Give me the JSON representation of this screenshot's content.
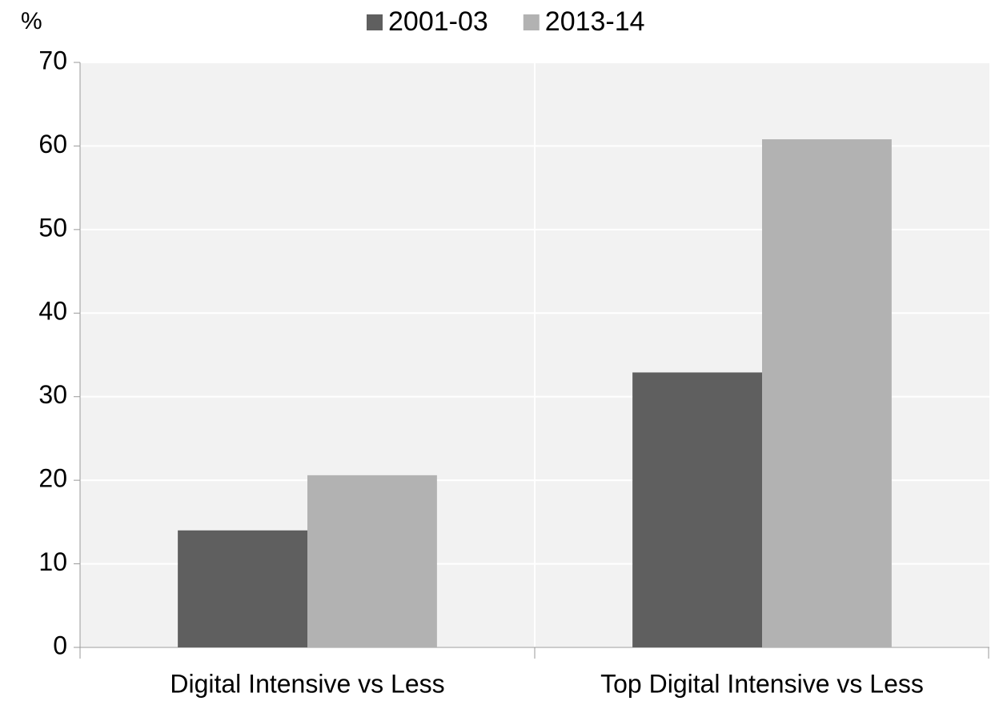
{
  "chart_data": {
    "type": "bar",
    "y_label": "%",
    "categories": [
      "Digital Intensive vs Less",
      "Top Digital Intensive vs Less"
    ],
    "series": [
      {
        "name": "2001-03",
        "color": "#5f5f5f",
        "values": [
          14.0,
          32.9
        ]
      },
      {
        "name": "2013-14",
        "color": "#b2b2b2",
        "values": [
          20.6,
          60.8
        ]
      }
    ],
    "ylim": [
      0,
      70
    ],
    "yticks": [
      0,
      10,
      20,
      30,
      40,
      50,
      60,
      70
    ],
    "grid": true,
    "legend": "top"
  }
}
